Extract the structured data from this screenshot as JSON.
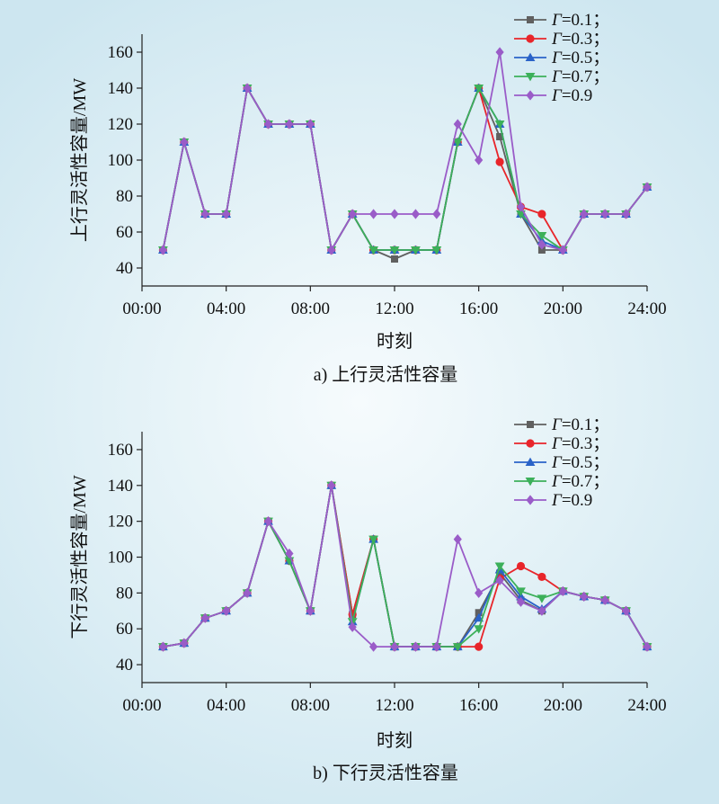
{
  "chart_data": [
    {
      "type": "line",
      "caption": "a) 上行灵活性容量",
      "xlabel": "时刻",
      "ylabel": "上行灵活性容量/MW",
      "xticks": [
        "00:00",
        "04:00",
        "08:00",
        "12:00",
        "16:00",
        "20:00",
        "24:00"
      ],
      "yticks": [
        "40",
        "60",
        "80",
        "100",
        "120",
        "140",
        "160"
      ],
      "xlim": [
        0,
        24
      ],
      "ylim": [
        30,
        170
      ],
      "legend_position": "top-right",
      "x": [
        1,
        2,
        3,
        4,
        5,
        6,
        7,
        8,
        9,
        10,
        11,
        12,
        13,
        14,
        15,
        16,
        17,
        18,
        19,
        20,
        21,
        22,
        23,
        24
      ],
      "series": [
        {
          "name": "Γ=0.1；",
          "color": "#606060",
          "marker": "square",
          "values": [
            50,
            110,
            70,
            70,
            140,
            120,
            120,
            120,
            50,
            70,
            50,
            45,
            50,
            50,
            110,
            140,
            113,
            70,
            50,
            50,
            70,
            70,
            70,
            85
          ]
        },
        {
          "name": "Γ=0.3；",
          "color": "#e8252a",
          "marker": "circle",
          "values": [
            50,
            110,
            70,
            70,
            140,
            120,
            120,
            120,
            50,
            70,
            50,
            50,
            50,
            50,
            110,
            140,
            99,
            74,
            70,
            50,
            70,
            70,
            70,
            85
          ]
        },
        {
          "name": "Γ=0.5；",
          "color": "#2a63c8",
          "marker": "triangle-up",
          "values": [
            50,
            110,
            70,
            70,
            140,
            120,
            120,
            120,
            50,
            70,
            50,
            50,
            50,
            50,
            110,
            140,
            120,
            70,
            55,
            50,
            70,
            70,
            70,
            85
          ]
        },
        {
          "name": "Γ=0.7；",
          "color": "#3cb05a",
          "marker": "triangle-down",
          "values": [
            50,
            110,
            70,
            70,
            140,
            120,
            120,
            120,
            50,
            70,
            50,
            50,
            50,
            50,
            110,
            140,
            120,
            70,
            58,
            50,
            70,
            70,
            70,
            85
          ]
        },
        {
          "name": "Γ=0.9",
          "color": "#9a5cc8",
          "marker": "diamond",
          "values": [
            50,
            110,
            70,
            70,
            140,
            120,
            120,
            120,
            50,
            70,
            70,
            70,
            70,
            70,
            120,
            100,
            160,
            74,
            53,
            50,
            70,
            70,
            70,
            85
          ]
        }
      ]
    },
    {
      "type": "line",
      "caption": "b) 下行灵活性容量",
      "xlabel": "时刻",
      "ylabel": "下行灵活性容量/MW",
      "xticks": [
        "00:00",
        "04:00",
        "08:00",
        "12:00",
        "16:00",
        "20:00",
        "24:00"
      ],
      "yticks": [
        "40",
        "60",
        "80",
        "100",
        "120",
        "140",
        "160"
      ],
      "xlim": [
        0,
        24
      ],
      "ylim": [
        30,
        170
      ],
      "legend_position": "top-right",
      "x": [
        1,
        2,
        3,
        4,
        5,
        6,
        7,
        8,
        9,
        10,
        11,
        12,
        13,
        14,
        15,
        16,
        17,
        18,
        19,
        20,
        21,
        22,
        23,
        24
      ],
      "series": [
        {
          "name": "Γ=0.1；",
          "color": "#606060",
          "marker": "square",
          "values": [
            50,
            52,
            66,
            70,
            80,
            120,
            98,
            70,
            140,
            68,
            110,
            50,
            50,
            50,
            50,
            69,
            91,
            76,
            70,
            81,
            78,
            76,
            70,
            50
          ]
        },
        {
          "name": "Γ=0.3；",
          "color": "#e8252a",
          "marker": "circle",
          "values": [
            50,
            52,
            66,
            70,
            80,
            120,
            98,
            70,
            140,
            68,
            110,
            50,
            50,
            50,
            50,
            50,
            88,
            95,
            89,
            81,
            78,
            76,
            70,
            50
          ]
        },
        {
          "name": "Γ=0.5；",
          "color": "#2a63c8",
          "marker": "triangle-up",
          "values": [
            50,
            52,
            66,
            70,
            80,
            120,
            98,
            70,
            140,
            64,
            110,
            50,
            50,
            50,
            50,
            66,
            93,
            78,
            71,
            81,
            78,
            76,
            70,
            50
          ]
        },
        {
          "name": "Γ=0.7；",
          "color": "#3cb05a",
          "marker": "triangle-down",
          "values": [
            50,
            52,
            66,
            70,
            80,
            120,
            98,
            70,
            140,
            64,
            110,
            50,
            50,
            50,
            50,
            60,
            95,
            81,
            77,
            81,
            78,
            76,
            70,
            50
          ]
        },
        {
          "name": "Γ=0.9",
          "color": "#9a5cc8",
          "marker": "diamond",
          "values": [
            50,
            52,
            66,
            70,
            80,
            120,
            102,
            70,
            140,
            61,
            50,
            50,
            50,
            50,
            110,
            80,
            87,
            75,
            70,
            81,
            78,
            76,
            70,
            50
          ]
        }
      ]
    }
  ]
}
